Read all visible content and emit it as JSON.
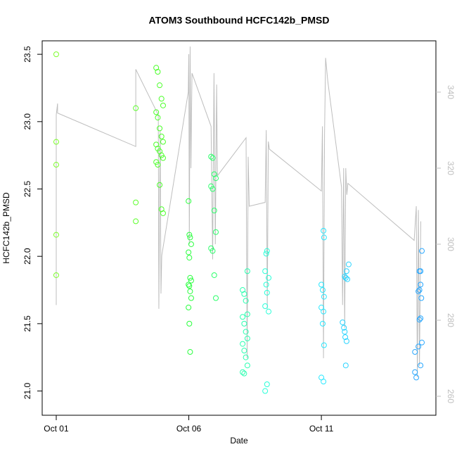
{
  "chart_data": {
    "type": "scatter",
    "title": "ATOM3 Southbound HCFC142b_PMSD",
    "x_label": "Date",
    "y_label": "HCFC142b_PMSD",
    "xlim": [
      -0.53,
      14.32
    ],
    "xticks": [
      {
        "value": 0,
        "label": "Oct 01"
      },
      {
        "value": 5,
        "label": "Oct 06"
      },
      {
        "value": 10,
        "label": "Oct 11"
      }
    ],
    "ylim": [
      20.82,
      23.6
    ],
    "yticks": [
      {
        "value": 21,
        "label": "21.0"
      },
      21.5,
      {
        "value": 22,
        "label": "22.0"
      },
      22.5,
      {
        "value": 23,
        "label": "23.0"
      },
      23.5
    ],
    "y2lim": [
      255,
      353.5
    ],
    "y2ticks": [
      260,
      280,
      300,
      320,
      340
    ],
    "series": [
      {
        "type": "scatter",
        "color": "#7cff2a",
        "x": [
          0,
          0,
          0,
          0,
          0
        ],
        "values": [
          23.5,
          22.85,
          22.68,
          22.16,
          21.86
        ]
      },
      {
        "type": "scatter",
        "color": "#5cff2a",
        "x": [
          3.0,
          3.0,
          3.0
        ],
        "values": [
          23.1,
          22.4,
          22.26
        ]
      },
      {
        "type": "scatter",
        "color": "#4cff2a",
        "x": [
          3.77,
          3.83,
          3.9,
          3.97,
          4.03,
          3.77,
          3.83,
          3.9,
          3.97,
          4.03,
          3.77,
          3.83,
          3.9,
          3.97,
          4.03,
          3.77,
          3.83,
          3.9,
          3.97,
          4.03
        ],
        "values": [
          23.4,
          23.37,
          23.27,
          23.17,
          23.12,
          23.07,
          23.03,
          22.95,
          22.89,
          22.85,
          22.83,
          22.8,
          22.78,
          22.75,
          22.73,
          22.7,
          22.68,
          22.53,
          22.35,
          22.32
        ]
      },
      {
        "type": "scatter",
        "color": "#2aff3f",
        "x": [
          4.99,
          5.02,
          5.05,
          5.09,
          4.99,
          5.02,
          5.05,
          5.09,
          4.99,
          5.02,
          5.05,
          5.09,
          4.99,
          5.02,
          5.05
        ],
        "values": [
          22.41,
          22.16,
          22.14,
          22.09,
          22.03,
          21.99,
          21.84,
          21.82,
          21.79,
          21.78,
          21.74,
          21.69,
          21.62,
          21.5,
          21.29
        ]
      },
      {
        "type": "scatter",
        "color": "#2aff6a",
        "x": [
          5.84,
          5.9,
          5.96,
          6.02,
          5.84,
          5.9,
          5.96,
          6.02,
          5.84,
          5.9,
          5.96,
          6.02
        ],
        "values": [
          22.74,
          22.73,
          22.61,
          22.58,
          22.52,
          22.5,
          22.34,
          22.18,
          22.06,
          22.04,
          21.86,
          21.69
        ]
      },
      {
        "type": "scatter",
        "color": "#2affb0",
        "x": [
          7.21,
          7.03,
          7.09,
          7.15,
          7.21,
          7.03,
          7.09,
          7.15,
          7.21,
          7.03,
          7.09,
          7.15,
          7.21,
          7.03,
          7.09
        ],
        "values": [
          21.89,
          21.75,
          21.72,
          21.67,
          21.57,
          21.55,
          21.5,
          21.44,
          21.39,
          21.35,
          21.3,
          21.25,
          21.19,
          21.14,
          21.13
        ]
      },
      {
        "type": "scatter",
        "color": "#2affd8",
        "x": [
          7.95,
          7.92,
          7.88,
          8.01,
          7.92,
          7.95,
          7.88,
          8.01,
          7.95,
          7.88
        ],
        "values": [
          22.04,
          22.02,
          21.89,
          21.84,
          21.79,
          21.73,
          21.63,
          21.59,
          21.05,
          21.0
        ]
      },
      {
        "type": "scatter",
        "color": "#2ae8ff",
        "x": [
          10.08,
          10.1,
          10.0,
          10.05,
          10.1,
          10.0,
          10.08,
          10.05,
          10.1,
          10.0,
          10.08
        ],
        "values": [
          22.19,
          22.14,
          21.79,
          21.75,
          21.7,
          21.62,
          21.59,
          21.5,
          21.34,
          21.1,
          21.07
        ]
      },
      {
        "type": "scatter",
        "color": "#2ad4ff",
        "x": [
          11.03,
          10.95,
          10.88,
          10.92,
          10.98,
          10.8,
          10.85,
          10.88,
          10.9,
          10.95,
          10.92
        ],
        "values": [
          21.94,
          21.89,
          21.85,
          21.84,
          21.83,
          21.51,
          21.47,
          21.44,
          21.4,
          21.37,
          21.19
        ]
      },
      {
        "type": "scatter",
        "color": "#2aa8ff",
        "x": [
          13.79,
          13.7,
          13.74,
          13.74,
          13.7,
          13.66,
          13.77,
          13.74,
          13.7,
          13.79,
          13.66,
          13.53,
          13.74,
          13.53,
          13.58
        ],
        "values": [
          22.04,
          21.89,
          21.89,
          21.79,
          21.75,
          21.74,
          21.69,
          21.54,
          21.53,
          21.36,
          21.33,
          21.29,
          21.19,
          21.14,
          21.1
        ]
      },
      {
        "type": "line",
        "axis": "y2",
        "color": "#bebebe",
        "x": [
          0,
          0,
          0.05,
          0.05,
          3.0,
          3.0,
          3.85,
          3.87,
          3.92,
          3.95,
          3.98,
          4.98,
          5.0,
          5.02,
          5.05,
          5.08,
          5.12,
          5.84,
          5.9,
          5.95,
          6.0,
          6.05,
          6.08,
          7.16,
          7.2,
          7.24,
          7.28,
          7.88,
          7.92,
          7.96,
          8.0,
          8.04,
          10.0,
          10.04,
          10.08,
          10.12,
          10.16,
          10.24,
          10.76,
          10.8,
          10.84,
          10.88,
          10.92,
          10.96,
          11.0,
          13.5,
          13.58,
          13.62,
          13.66,
          13.7,
          13.75
        ],
        "values": [
          284,
          334,
          337,
          334.5,
          325.7,
          346,
          334,
          283,
          330,
          287,
          297,
          340,
          350,
          300,
          352,
          320,
          345,
          331,
          296,
          345,
          300,
          342,
          318,
          328,
          270,
          323,
          310,
          311,
          330,
          283,
          327,
          325,
          314,
          331,
          270,
          329,
          349,
          343,
          315,
          284,
          320,
          278,
          320,
          313,
          316,
          301,
          310,
          265,
          309,
          268,
          306
        ]
      }
    ]
  }
}
